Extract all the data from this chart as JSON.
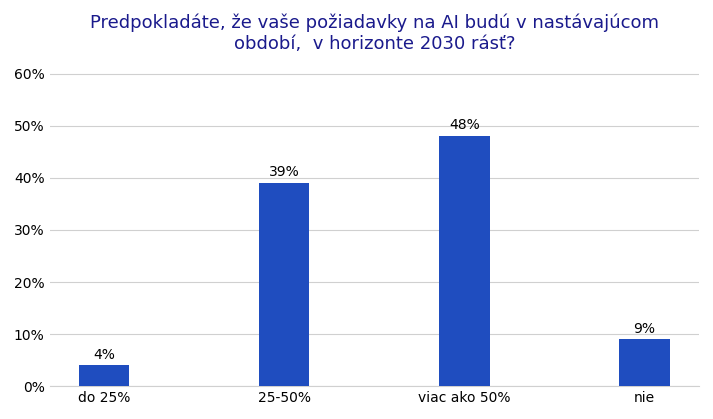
{
  "title": "Predpokladáte, že vaše požiadavky na AI budú v nastávajúcom\nobdobí,  v horizonte 2030 rásť?",
  "categories": [
    "do 25%",
    "25-50%",
    "viac ako 50%",
    "nie"
  ],
  "values": [
    4,
    39,
    48,
    9
  ],
  "bar_color": "#1f4dbf",
  "title_color": "#1a1a8c",
  "ylim": [
    0,
    62
  ],
  "yticks": [
    0,
    10,
    20,
    30,
    40,
    50,
    60
  ],
  "title_fontsize": 13,
  "tick_fontsize": 10,
  "value_fontsize": 10,
  "background_color": "#ffffff",
  "grid_color": "#d0d0d0",
  "bar_width": 0.28,
  "figsize": [
    7.13,
    4.19
  ],
  "dpi": 100
}
